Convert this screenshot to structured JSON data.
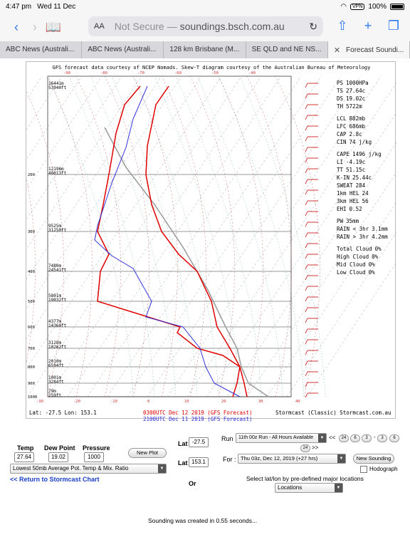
{
  "status_bar": {
    "time": "4:47 pm",
    "date": "Wed 11 Dec",
    "vpn": "VPN",
    "battery": "100%"
  },
  "toolbar": {
    "text_size": "AA",
    "not_secure": "Not Secure —",
    "url": "soundings.bsch.com.au",
    "icons": [
      "back-icon",
      "forward-icon",
      "bookmarks-icon",
      "reload-icon",
      "share-icon",
      "new-tab-icon",
      "tabs-icon"
    ]
  },
  "tabs": [
    "ABC News (Australi...",
    "ABC News (Australi...",
    "128 km Brisbane (M...",
    "SE QLD and NE NS...",
    "Forecast Soundi..."
  ],
  "chart": {
    "header": "GFS forecast data courtesy of NCEP Nomads.  Skew-T diagram courtesy of the Australian Bureau of Meteorology",
    "top_temps": [
      "-90",
      "-80",
      "-70",
      "-60",
      "-50",
      "-40"
    ],
    "bottom_temps": [
      "-30",
      "-20",
      "-10",
      "0",
      "10",
      "20",
      "30",
      "40"
    ],
    "pressure_labels": [
      {
        "p": "200",
        "h1": "12196m",
        "h2": "40013ft"
      },
      {
        "p": "300",
        "h1": "9525m",
        "h2": "31250ft"
      },
      {
        "p": "400",
        "h1": "7480m",
        "h2": "24541ft"
      },
      {
        "p": "500",
        "h1": "5801m",
        "h2": "19032ft"
      },
      {
        "p": "600",
        "h1": "4377m",
        "h2": "14360ft"
      },
      {
        "p": "700",
        "h1": "3128m",
        "h2": "10262ft"
      },
      {
        "p": "800",
        "h1": "2010m",
        "h2": "6594ft"
      },
      {
        "p": "900",
        "h1": "1001m",
        "h2": "3284ft"
      },
      {
        "p": "1000",
        "h1": "79m",
        "h2": "259ft"
      }
    ],
    "top_height": {
      "h1": "16441m",
      "h2": "53940ft"
    },
    "stats": [
      {
        "k": "PS",
        "v": "1000HPa"
      },
      {
        "k": "TS",
        "v": "27.64c"
      },
      {
        "k": "DS",
        "v": "19.02c"
      },
      {
        "k": "TH",
        "v": "5722m"
      },
      {
        "k": "",
        "v": ""
      },
      {
        "k": "LCL",
        "v": "882mb"
      },
      {
        "k": "LFC",
        "v": "686mb"
      },
      {
        "k": "CAP",
        "v": "2.8c"
      },
      {
        "k": "CIN",
        "v": "74 j/kg"
      },
      {
        "k": "",
        "v": ""
      },
      {
        "k": "CAPE",
        "v": "1496 j/kg"
      },
      {
        "k": "LI",
        "v": "-4.19c"
      },
      {
        "k": "TT",
        "v": "51.15c"
      },
      {
        "k": "K-IN",
        "v": "25.44c"
      },
      {
        "k": "SWEAT",
        "v": "284"
      },
      {
        "k": "1km HEL",
        "v": "24"
      },
      {
        "k": "3km HEL",
        "v": "56"
      },
      {
        "k": "EHI",
        "v": "0.52"
      },
      {
        "k": "",
        "v": ""
      },
      {
        "k": "PW",
        "v": "35mm"
      },
      {
        "k": "RAIN < 3hr",
        "v": "3.1mm"
      },
      {
        "k": "RAIN > 3hr",
        "v": "4.2mm"
      },
      {
        "k": "",
        "v": ""
      },
      {
        "k": "Total Cloud",
        "v": "0%"
      },
      {
        "k": "High Cloud",
        "v": "0%"
      },
      {
        "k": "Mid Cloud",
        "v": "0%"
      },
      {
        "k": "Low Cloud",
        "v": "0%"
      }
    ],
    "latlon": "Lat: -27.5   Lon: 153.1",
    "run1": "0300UTC Dec 12 2019 (GFS Forecast)",
    "run2": "2100UTC Dec 11 2019 (GFS Forecast)",
    "credit": "Stormcast (Classic) Stormcast.com.au",
    "colors": {
      "temp": "#e00000",
      "dew": "#3333dd",
      "parcel": "#999999",
      "dry": "#c86060",
      "moist": "#40a080"
    }
  },
  "form": {
    "temp_label": "Temp",
    "temp_value": "27.64",
    "dew_label": "Dew Point",
    "dew_value": "19.02",
    "pressure_label": "Pressure",
    "pressure_value": "1000",
    "new_plot": "New Plot",
    "lat_label": "Lat",
    "lat_value": "-27.5",
    "lon_label": "Lat",
    "lon_value": "153.1",
    "or": "Or",
    "mix_select": "Lowest 50mb Average Pot. Temp & Mix. Ratio",
    "return_link": "<< Return to Stormcast Chart",
    "run_label": "Run",
    "run_select": "11th 00z Run - All Hours Available",
    "run_nav": [
      "<<",
      "24",
      "6",
      "3",
      "-",
      "3",
      "6",
      "24",
      ">>"
    ],
    "for_label": "For :",
    "for_select": "Thu 03z, Dec 12, 2019 (+27 hrs)",
    "new_sounding": "New Sounding",
    "hodograph": "Hodograph",
    "select_prompt": "Select lat/lon by pre-defined major locations",
    "locations": "Locations",
    "created": "Sounding was created in 0.55 seconds..."
  }
}
